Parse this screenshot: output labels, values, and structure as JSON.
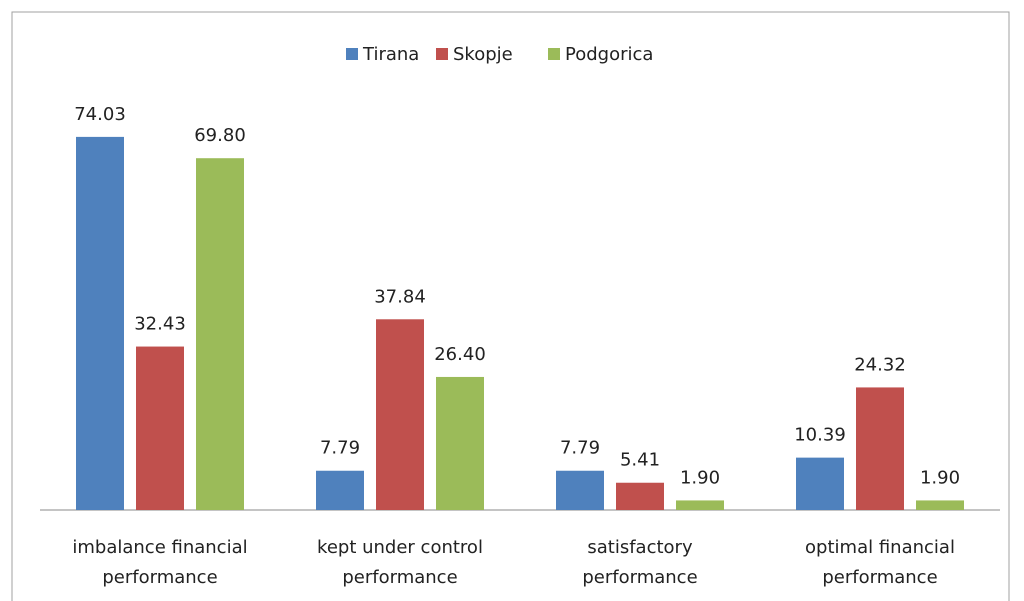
{
  "chart_data": {
    "type": "bar",
    "categories": [
      [
        "imbalance financial",
        "performance"
      ],
      [
        "kept under control",
        "performance"
      ],
      [
        "satisfactory",
        "performance"
      ],
      [
        "optimal financial",
        "performance"
      ]
    ],
    "series": [
      {
        "name": "Tirana",
        "color": "#4f81bd",
        "values": [
          74.03,
          7.79,
          7.79,
          10.39
        ],
        "value_labels": [
          "74.03",
          "7.79",
          "7.79",
          "10.39"
        ]
      },
      {
        "name": "Skopje",
        "color": "#c0504d",
        "values": [
          32.43,
          37.84,
          5.41,
          24.32
        ],
        "value_labels": [
          "32.43",
          "37.84",
          "5.41",
          "24.32"
        ]
      },
      {
        "name": "Podgorica",
        "color": "#9bbb59",
        "values": [
          69.8,
          26.4,
          1.9,
          1.9
        ],
        "value_labels": [
          "69.80",
          "26.40",
          "1.90",
          "1.90"
        ]
      }
    ],
    "legend": "top"
  }
}
